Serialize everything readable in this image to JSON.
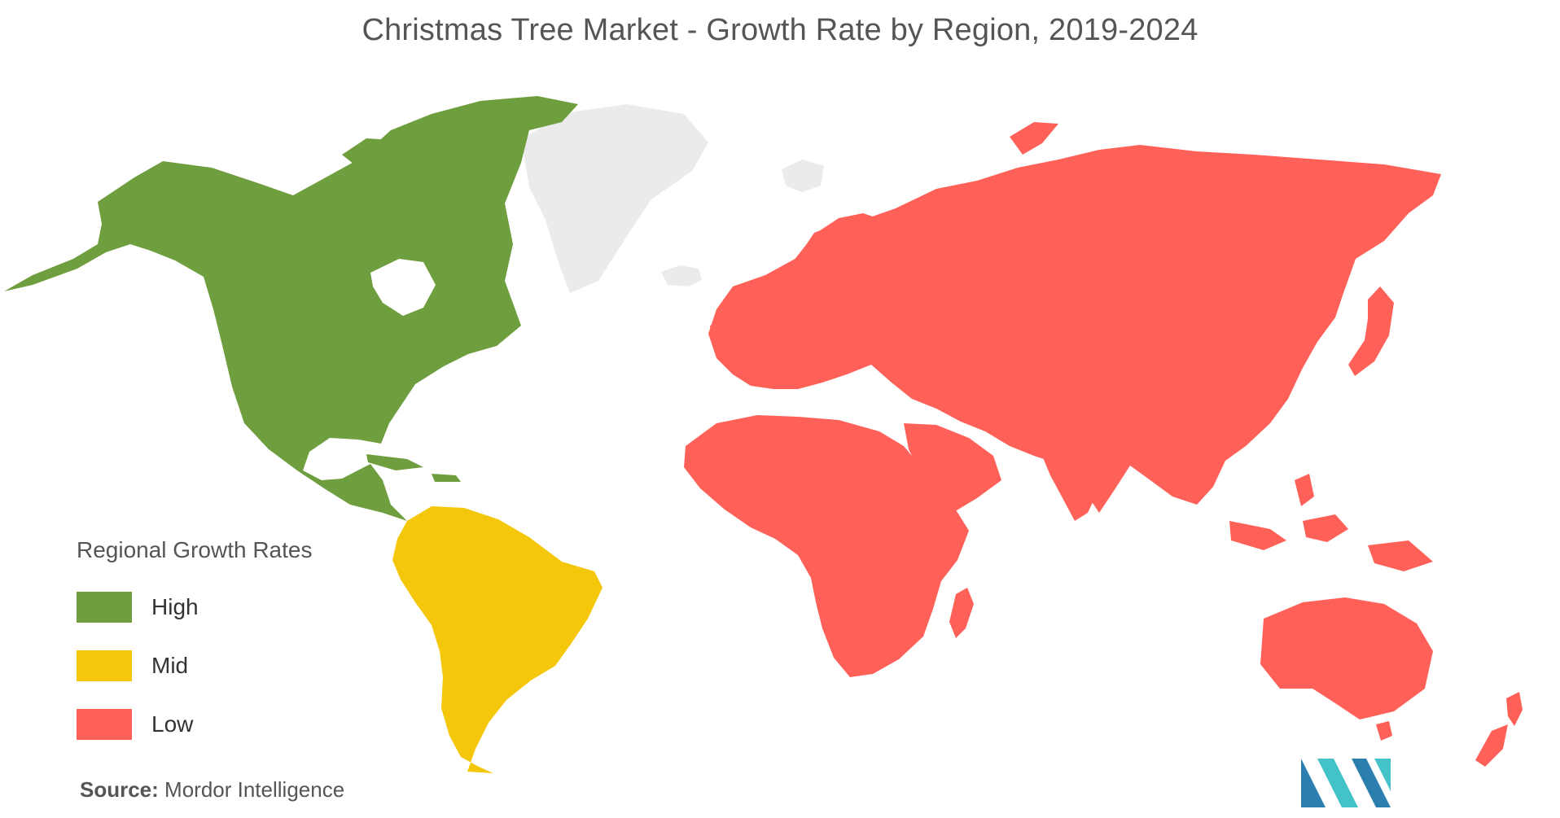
{
  "title": "Christmas Tree Market - Growth Rate by Region, 2019-2024",
  "legend": {
    "title": "Regional Growth Rates",
    "items": [
      {
        "label": "High",
        "color": "#6e9e3e"
      },
      {
        "label": "Mid",
        "color": "#f5c70a"
      },
      {
        "label": "Low",
        "color": "#ff6159"
      }
    ]
  },
  "source": {
    "label": "Source:",
    "text": "Mordor Intelligence"
  },
  "colors": {
    "no_data": "#ebebeb",
    "logo_dark": "#2a7fae",
    "logo_light": "#43c3c8"
  },
  "regions": [
    {
      "name": "North America",
      "growth": "High"
    },
    {
      "name": "South America",
      "growth": "Mid"
    },
    {
      "name": "Europe",
      "growth": "Low"
    },
    {
      "name": "Asia-Pacific",
      "growth": "Low"
    },
    {
      "name": "Middle East and Africa",
      "growth": "Low"
    }
  ]
}
